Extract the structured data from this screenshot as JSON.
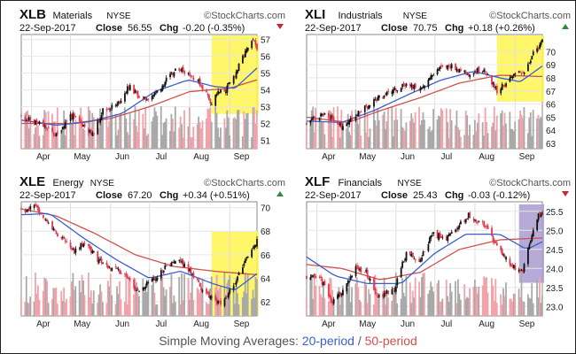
{
  "chart_data": [
    {
      "type": "candlestick",
      "symbol": "XLB",
      "name": "Materials",
      "exchange": "NYSE",
      "date": "22-Sep-2017",
      "close_label": "Close",
      "close": "56.55",
      "chg_label": "Chg",
      "chg": "-0.20 (-0.35%)",
      "direction": "down",
      "source": "©StockCharts.com",
      "x_ticks": [
        "Apr",
        "May",
        "Jun",
        "Jul",
        "Aug",
        "Sep"
      ],
      "y_ticks": [
        "57",
        "56",
        "55",
        "54",
        "53",
        "52",
        "51"
      ],
      "ylim": [
        50.5,
        57.3
      ],
      "highlight": {
        "from": "2017-08-18",
        "to": "2017-09-22",
        "color": "#fff44f"
      },
      "price_keypoints": [
        [
          "2017-03-24",
          52.4
        ],
        [
          "2017-04-07",
          52.0
        ],
        [
          "2017-04-20",
          51.3
        ],
        [
          "2017-05-01",
          52.5
        ],
        [
          "2017-05-10",
          52.0
        ],
        [
          "2017-05-18",
          51.3
        ],
        [
          "2017-05-26",
          52.8
        ],
        [
          "2017-06-06",
          53.1
        ],
        [
          "2017-06-15",
          54.2
        ],
        [
          "2017-06-26",
          53.4
        ],
        [
          "2017-07-06",
          53.8
        ],
        [
          "2017-07-14",
          54.6
        ],
        [
          "2017-07-24",
          55.3
        ],
        [
          "2017-07-31",
          55.0
        ],
        [
          "2017-08-07",
          54.6
        ],
        [
          "2017-08-14",
          53.8
        ],
        [
          "2017-08-18",
          53.2
        ],
        [
          "2017-08-22",
          53.8
        ],
        [
          "2017-08-29",
          54.0
        ],
        [
          "2017-09-05",
          54.9
        ],
        [
          "2017-09-12",
          56.1
        ],
        [
          "2017-09-19",
          56.9
        ],
        [
          "2017-09-22",
          56.55
        ]
      ],
      "ma20_keypoints": [
        [
          "2017-03-24",
          52.2
        ],
        [
          "2017-04-20",
          51.9
        ],
        [
          "2017-05-15",
          52.1
        ],
        [
          "2017-06-10",
          52.6
        ],
        [
          "2017-07-05",
          53.9
        ],
        [
          "2017-07-31",
          54.6
        ],
        [
          "2017-08-20",
          54.2
        ],
        [
          "2017-09-05",
          54.1
        ],
        [
          "2017-09-22",
          55.3
        ]
      ],
      "ma50_keypoints": [
        [
          "2017-03-24",
          52.0
        ],
        [
          "2017-05-01",
          52.0
        ],
        [
          "2017-06-01",
          52.3
        ],
        [
          "2017-07-01",
          53.0
        ],
        [
          "2017-08-01",
          53.9
        ],
        [
          "2017-09-01",
          54.1
        ],
        [
          "2017-09-22",
          54.6
        ]
      ]
    },
    {
      "type": "candlestick",
      "symbol": "XLI",
      "name": "Industrials",
      "exchange": "NYSE",
      "date": "22-Sep-2017",
      "close_label": "Close",
      "close": "70.75",
      "chg_label": "Chg",
      "chg": "+0.18 (+0.26%)",
      "direction": "up",
      "source": "©StockCharts.com",
      "x_ticks": [
        "Apr",
        "May",
        "Jun",
        "Jul",
        "Aug",
        "Sep"
      ],
      "y_ticks": [
        "70",
        "69",
        "68",
        "67",
        "66",
        "65",
        "64",
        "63"
      ],
      "ylim": [
        62.6,
        71.3
      ],
      "highlight": {
        "from": "2017-08-18",
        "to": "2017-09-22",
        "color": "#fff44f"
      },
      "price_keypoints": [
        [
          "2017-03-24",
          64.6
        ],
        [
          "2017-04-07",
          65.3
        ],
        [
          "2017-04-20",
          64.3
        ],
        [
          "2017-05-01",
          65.2
        ],
        [
          "2017-05-15",
          66.2
        ],
        [
          "2017-05-25",
          66.8
        ],
        [
          "2017-06-08",
          67.5
        ],
        [
          "2017-06-20",
          67.2
        ],
        [
          "2017-07-03",
          68.6
        ],
        [
          "2017-07-14",
          68.9
        ],
        [
          "2017-07-28",
          68.3
        ],
        [
          "2017-08-08",
          68.7
        ],
        [
          "2017-08-18",
          67.0
        ],
        [
          "2017-08-25",
          67.6
        ],
        [
          "2017-09-01",
          68.2
        ],
        [
          "2017-09-08",
          68.5
        ],
        [
          "2017-09-15",
          69.8
        ],
        [
          "2017-09-22",
          70.75
        ]
      ],
      "ma20_keypoints": [
        [
          "2017-03-24",
          64.7
        ],
        [
          "2017-04-20",
          64.6
        ],
        [
          "2017-05-15",
          65.5
        ],
        [
          "2017-06-10",
          66.7
        ],
        [
          "2017-07-05",
          67.8
        ],
        [
          "2017-07-31",
          68.5
        ],
        [
          "2017-08-20",
          68.0
        ],
        [
          "2017-09-05",
          67.7
        ],
        [
          "2017-09-22",
          68.9
        ]
      ],
      "ma50_keypoints": [
        [
          "2017-03-24",
          65.0
        ],
        [
          "2017-04-25",
          64.6
        ],
        [
          "2017-05-20",
          65.5
        ],
        [
          "2017-06-20",
          66.5
        ],
        [
          "2017-07-20",
          67.6
        ],
        [
          "2017-08-20",
          68.2
        ],
        [
          "2017-09-22",
          68.1
        ]
      ]
    },
    {
      "type": "candlestick",
      "symbol": "XLE",
      "name": "Energy",
      "exchange": "NYSE",
      "date": "22-Sep-2017",
      "close_label": "Close",
      "close": "67.20",
      "chg_label": "Chg",
      "chg": "+0.34 (+0.51%)",
      "direction": "up",
      "source": "©StockCharts.com",
      "x_ticks": [
        "Apr",
        "May",
        "Jun",
        "Jul",
        "Aug",
        "Sep"
      ],
      "y_ticks": [
        "70",
        "68",
        "66",
        "64",
        "62"
      ],
      "ylim": [
        60.8,
        70.5
      ],
      "highlight": {
        "from": "2017-08-18",
        "to": "2017-09-22",
        "color": "#fff44f"
      },
      "price_keypoints": [
        [
          "2017-03-24",
          69.8
        ],
        [
          "2017-04-04",
          70.0
        ],
        [
          "2017-04-14",
          68.7
        ],
        [
          "2017-04-24",
          67.4
        ],
        [
          "2017-05-04",
          66.3
        ],
        [
          "2017-05-12",
          67.1
        ],
        [
          "2017-05-22",
          65.6
        ],
        [
          "2017-06-02",
          64.9
        ],
        [
          "2017-06-13",
          64.3
        ],
        [
          "2017-06-21",
          62.9
        ],
        [
          "2017-07-03",
          63.8
        ],
        [
          "2017-07-13",
          64.9
        ],
        [
          "2017-07-24",
          65.6
        ],
        [
          "2017-08-02",
          64.5
        ],
        [
          "2017-08-10",
          63.2
        ],
        [
          "2017-08-22",
          61.8
        ],
        [
          "2017-08-30",
          62.4
        ],
        [
          "2017-09-07",
          64.2
        ],
        [
          "2017-09-14",
          65.8
        ],
        [
          "2017-09-22",
          67.2
        ]
      ],
      "ma20_keypoints": [
        [
          "2017-03-24",
          69.4
        ],
        [
          "2017-04-15",
          69.5
        ],
        [
          "2017-05-10",
          67.5
        ],
        [
          "2017-06-05",
          65.6
        ],
        [
          "2017-07-01",
          64.0
        ],
        [
          "2017-07-25",
          64.6
        ],
        [
          "2017-08-20",
          63.5
        ],
        [
          "2017-09-05",
          63.0
        ],
        [
          "2017-09-22",
          64.4
        ]
      ],
      "ma50_keypoints": [
        [
          "2017-03-24",
          69.9
        ],
        [
          "2017-04-20",
          69.3
        ],
        [
          "2017-05-20",
          67.8
        ],
        [
          "2017-06-20",
          66.0
        ],
        [
          "2017-07-20",
          65.0
        ],
        [
          "2017-08-20",
          64.6
        ],
        [
          "2017-09-22",
          64.3
        ]
      ]
    },
    {
      "type": "candlestick",
      "symbol": "XLF",
      "name": "Financials",
      "exchange": "NYSE",
      "date": "22-Sep-2017",
      "close_label": "Close",
      "close": "25.43",
      "chg_label": "Chg",
      "chg": "-0.03 (-0.12%)",
      "direction": "down",
      "source": "©StockCharts.com",
      "x_ticks": [
        "Apr",
        "May",
        "Jun",
        "Jul",
        "Aug",
        "Sep"
      ],
      "y_ticks": [
        "25.5",
        "25.0",
        "24.5",
        "24.0",
        "23.5",
        "23.0"
      ],
      "ylim": [
        22.75,
        25.75
      ],
      "highlight": {
        "from": "2017-09-04",
        "to": "2017-09-22",
        "color": "#a89ccf"
      },
      "price_keypoints": [
        [
          "2017-03-24",
          23.8
        ],
        [
          "2017-04-04",
          23.7
        ],
        [
          "2017-04-13",
          23.1
        ],
        [
          "2017-04-21",
          23.4
        ],
        [
          "2017-05-01",
          24.0
        ],
        [
          "2017-05-09",
          23.9
        ],
        [
          "2017-05-18",
          23.2
        ],
        [
          "2017-05-31",
          23.5
        ],
        [
          "2017-06-09",
          24.4
        ],
        [
          "2017-06-19",
          24.2
        ],
        [
          "2017-06-29",
          24.9
        ],
        [
          "2017-07-10",
          24.8
        ],
        [
          "2017-07-19",
          25.1
        ],
        [
          "2017-07-27",
          25.4
        ],
        [
          "2017-08-07",
          25.2
        ],
        [
          "2017-08-18",
          24.6
        ],
        [
          "2017-08-29",
          24.1
        ],
        [
          "2017-09-07",
          23.9
        ],
        [
          "2017-09-13",
          24.8
        ],
        [
          "2017-09-19",
          25.45
        ],
        [
          "2017-09-22",
          25.43
        ]
      ],
      "ma20_keypoints": [
        [
          "2017-03-24",
          24.3
        ],
        [
          "2017-04-15",
          23.8
        ],
        [
          "2017-05-10",
          23.6
        ],
        [
          "2017-06-05",
          23.6
        ],
        [
          "2017-07-01",
          24.4
        ],
        [
          "2017-07-25",
          24.9
        ],
        [
          "2017-08-20",
          24.9
        ],
        [
          "2017-09-10",
          24.5
        ],
        [
          "2017-09-22",
          24.7
        ]
      ],
      "ma50_keypoints": [
        [
          "2017-03-24",
          24.1
        ],
        [
          "2017-04-20",
          24.0
        ],
        [
          "2017-05-20",
          23.7
        ],
        [
          "2017-06-20",
          23.9
        ],
        [
          "2017-07-20",
          24.5
        ],
        [
          "2017-08-20",
          24.75
        ],
        [
          "2017-09-22",
          24.8
        ]
      ]
    }
  ],
  "colors": {
    "candle_up": "#111111",
    "candle_down": "#e03a4e",
    "ma20": "#3a5fcd",
    "ma50": "#d0504c",
    "volume_up": "#a9a9a9",
    "volume_down": "#f1a3ab",
    "arrow_up": "#2e8b3a",
    "arrow_down": "#cc2233"
  },
  "caption": {
    "prefix": "Simple Moving Averages:",
    "ma20": "20-period",
    "separator": " / ",
    "ma50": "50-period"
  }
}
